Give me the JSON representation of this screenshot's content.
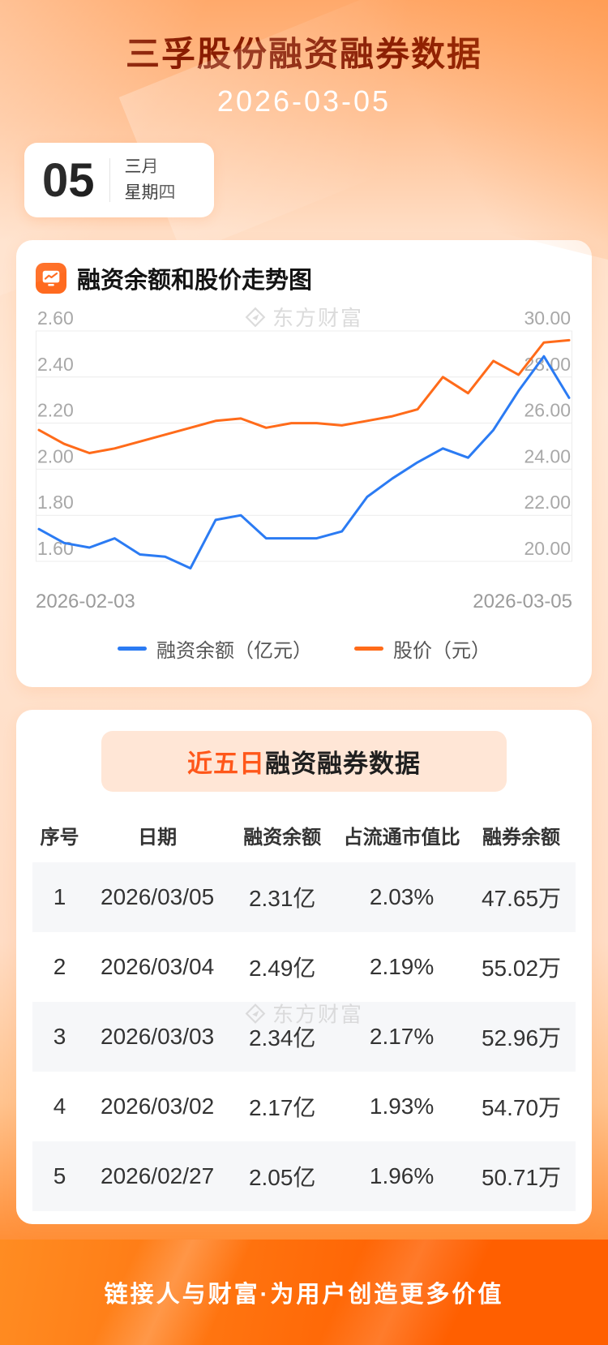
{
  "page": {
    "title": "三孚股份融资融券数据",
    "date": "2026-03-05"
  },
  "date_card": {
    "day": "05",
    "month": "三月",
    "weekday": "星期四"
  },
  "chart_section": {
    "title": "融资余额和股价走势图",
    "watermark": "东方财富",
    "legend": [
      {
        "label": "融资余额（亿元）",
        "color": "#2b7bf3"
      },
      {
        "label": "股价（元）",
        "color": "#ff6b1a"
      }
    ]
  },
  "chart_data": {
    "type": "line",
    "title": "融资余额和股价走势图",
    "x_labels": [
      "2026-02-03",
      "2026-03-05"
    ],
    "grid": true,
    "legend_position": "bottom",
    "left_axis": {
      "min": 1.6,
      "max": 2.6,
      "ticks": [
        "2.60",
        "2.40",
        "2.20",
        "2.00",
        "1.80",
        "1.60"
      ]
    },
    "right_axis": {
      "min": 20.0,
      "max": 30.0,
      "ticks": [
        "30.00",
        "28.00",
        "26.00",
        "24.00",
        "22.00",
        "20.00"
      ]
    },
    "series": [
      {
        "name": "融资余额（亿元）",
        "axis": "left",
        "color": "#2b7bf3",
        "values": [
          1.74,
          1.68,
          1.66,
          1.7,
          1.63,
          1.62,
          1.57,
          1.78,
          1.8,
          1.7,
          1.7,
          1.7,
          1.73,
          1.88,
          1.96,
          2.03,
          2.09,
          2.05,
          2.17,
          2.34,
          2.49,
          2.31
        ]
      },
      {
        "name": "股价（元）",
        "axis": "right",
        "color": "#ff6b1a",
        "values": [
          25.7,
          25.1,
          24.7,
          24.9,
          25.2,
          25.5,
          25.8,
          26.1,
          26.2,
          25.8,
          26.0,
          26.0,
          25.9,
          26.1,
          26.3,
          26.6,
          28.0,
          27.3,
          28.7,
          28.1,
          29.5,
          29.6
        ]
      }
    ]
  },
  "table_section": {
    "title_highlight": "近五日",
    "title_rest": "融资融券数据",
    "watermark": "东方财富",
    "columns": [
      "序号",
      "日期",
      "融资余额",
      "占流通市值比",
      "融券余额"
    ],
    "rows": [
      [
        "1",
        "2026/03/05",
        "2.31亿",
        "2.03%",
        "47.65万"
      ],
      [
        "2",
        "2026/03/04",
        "2.49亿",
        "2.19%",
        "55.02万"
      ],
      [
        "3",
        "2026/03/03",
        "2.34亿",
        "2.17%",
        "52.96万"
      ],
      [
        "4",
        "2026/03/02",
        "2.17亿",
        "1.93%",
        "54.70万"
      ],
      [
        "5",
        "2026/02/27",
        "2.05亿",
        "1.96%",
        "50.71万"
      ]
    ]
  },
  "footer": {
    "slogan": "链接人与财富·为用户创造更多价值"
  }
}
